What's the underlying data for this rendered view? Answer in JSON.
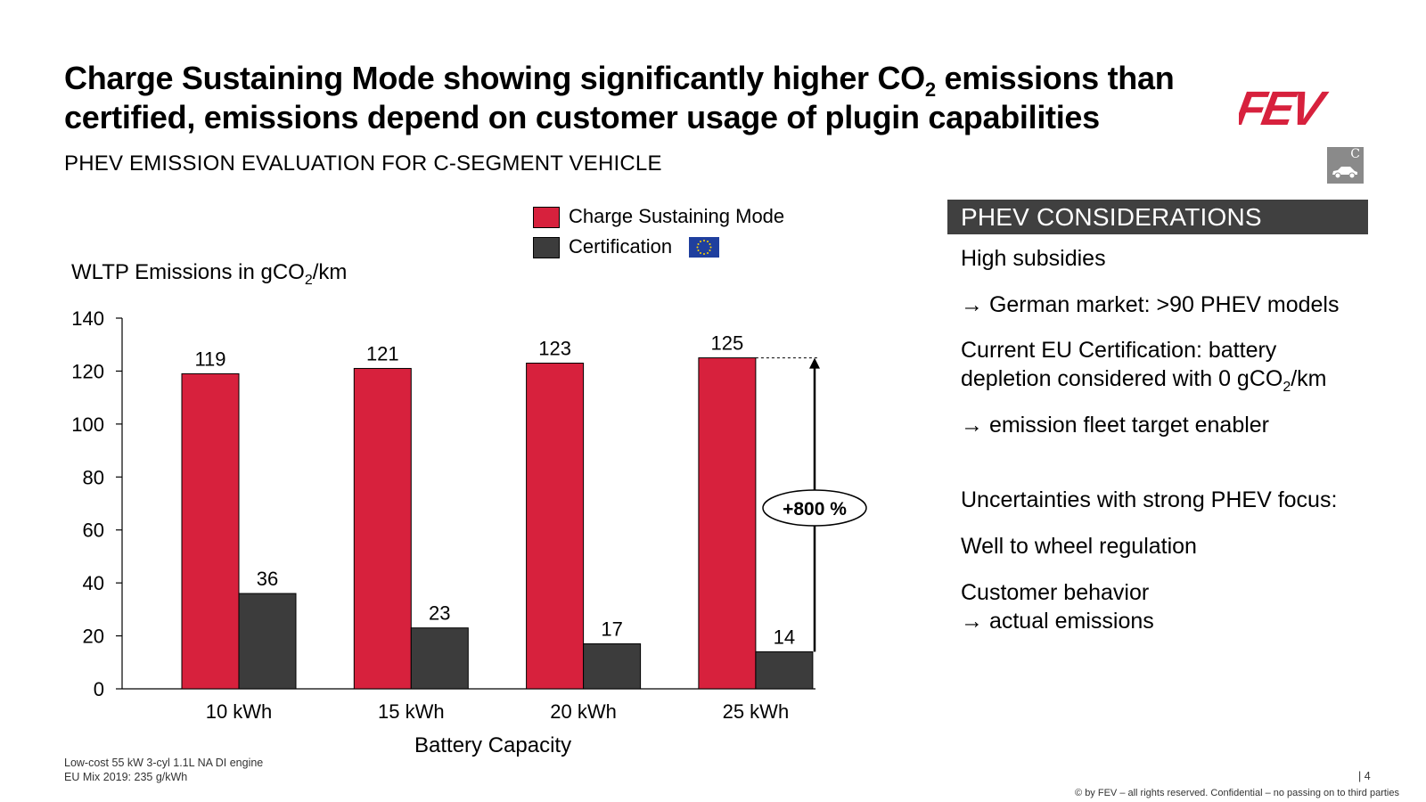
{
  "header": {
    "title_pre": "Charge Sustaining Mode showing significantly higher CO",
    "title_sub": "2",
    "title_post": " emissions than certified, emissions depend on customer usage of plugin capabilities",
    "subtitle": "PHEV EMISSION EVALUATION FOR C-SEGMENT VEHICLE",
    "logo_text": "FEV",
    "segment_badge": "C"
  },
  "colors": {
    "charge_sustaining": "#d7213d",
    "certification": "#3c3c3c",
    "panel_header_bg": "#404040",
    "logo_red": "#d7213d"
  },
  "chart_data": {
    "type": "bar",
    "categories": [
      "10 kWh",
      "15 kWh",
      "20 kWh",
      "25 kWh"
    ],
    "series": [
      {
        "name": "Charge Sustaining Mode",
        "values": [
          119,
          121,
          123,
          125
        ]
      },
      {
        "name": "Certification",
        "values": [
          36,
          23,
          17,
          14
        ]
      }
    ],
    "ylim": [
      0,
      140
    ],
    "yticks": [
      0,
      20,
      40,
      60,
      80,
      100,
      120,
      140
    ],
    "ylabel_pre": "WLTP Emissions in gCO",
    "ylabel_sub": "2",
    "ylabel_post": "/km",
    "xlabel": "Battery Capacity",
    "annotation": "+800 %",
    "legend_placement": "top-right",
    "grid": false
  },
  "panel": {
    "header": "PHEV CONSIDERATIONS",
    "items": {
      "subsidies": "High subsidies",
      "german_market": "→ German market: >90 PHEV models",
      "eu_cert_pre": "Current EU Certification: battery depletion considered with 0 gCO",
      "eu_cert_sub": "2",
      "eu_cert_post": "/km",
      "fleet_target": "→ emission fleet target enabler",
      "uncertainties": "Uncertainties with strong PHEV focus:",
      "well_to_wheel": "Well to wheel regulation",
      "customer_behavior": "Customer behavior",
      "actual_emissions": "→ actual emissions"
    }
  },
  "footnotes": {
    "engine": "Low-cost 55 kW 3-cyl 1.1L NA DI engine",
    "eu_mix": "EU Mix 2019: 235 g/kWh",
    "page": "| 4",
    "copyright": "© by FEV – all rights reserved. Confidential – no passing on to third parties"
  }
}
